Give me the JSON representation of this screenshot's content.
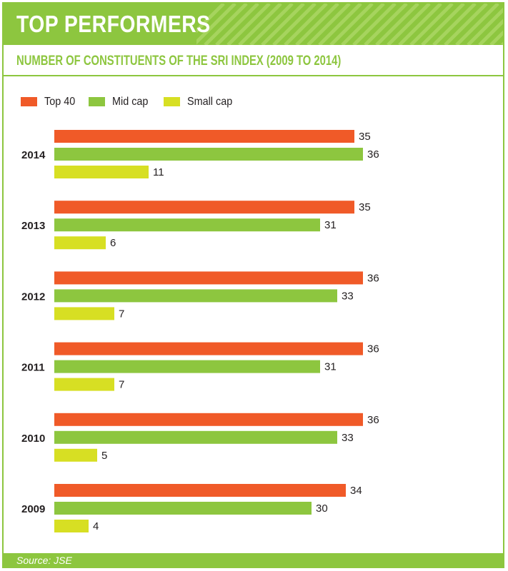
{
  "header": {
    "title": "TOP PERFORMERS"
  },
  "subtitle": "NUMBER OF CONSTITUENTS OF THE SRI INDEX (2009 TO 2014)",
  "footer": {
    "source": "Source: JSE"
  },
  "colors": {
    "brand_green": "#8dc63f",
    "top40": "#f05a28",
    "midcap": "#8dc63f",
    "smallcap": "#d7df23"
  },
  "legend": [
    {
      "label": "Top 40",
      "color": "#f05a28"
    },
    {
      "label": "Mid cap",
      "color": "#8dc63f"
    },
    {
      "label": "Small cap",
      "color": "#d7df23"
    }
  ],
  "chart_data": {
    "type": "bar",
    "orientation": "horizontal",
    "title": "NUMBER OF CONSTITUENTS OF THE SRI INDEX (2009 TO 2014)",
    "categories": [
      "2014",
      "2013",
      "2012",
      "2011",
      "2010",
      "2009"
    ],
    "series": [
      {
        "name": "Top 40",
        "color": "#f05a28",
        "values": [
          35,
          35,
          36,
          36,
          36,
          34
        ]
      },
      {
        "name": "Mid cap",
        "color": "#8dc63f",
        "values": [
          36,
          31,
          33,
          31,
          33,
          30
        ]
      },
      {
        "name": "Small cap",
        "color": "#d7df23",
        "values": [
          11,
          6,
          7,
          7,
          5,
          4
        ]
      }
    ],
    "xlim": [
      0,
      36
    ],
    "data_labels": true,
    "grid": false,
    "legend_position": "top-left",
    "source": "Source: JSE"
  }
}
